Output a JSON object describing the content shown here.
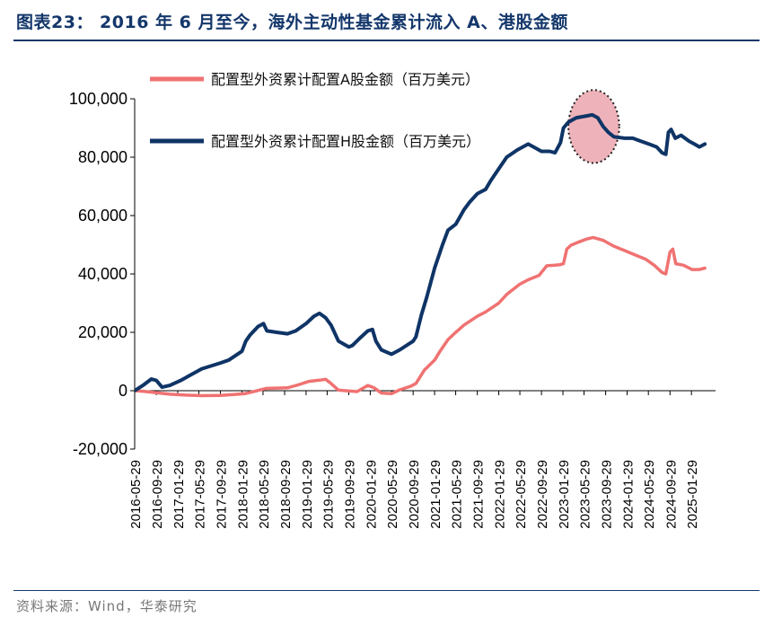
{
  "header": {
    "title": "图表23：  2016 年 6 月至今，海外主动性基金累计流入 A、港股金额"
  },
  "footer": {
    "source": "资料来源：Wind，华泰研究"
  },
  "colors": {
    "title": "#14376b",
    "series_a": "#f07272",
    "series_h": "#0f3466",
    "highlight_fill": "#e89aa3",
    "axis": "#000000"
  },
  "chart_data": {
    "type": "line",
    "x_tick_labels": [
      "2016-05-29",
      "2016-09-29",
      "2017-01-29",
      "2017-05-29",
      "2017-09-29",
      "2018-01-29",
      "2018-05-29",
      "2018-09-29",
      "2019-01-29",
      "2019-05-29",
      "2019-09-29",
      "2020-01-29",
      "2020-05-29",
      "2020-09-29",
      "2021-01-29",
      "2021-05-29",
      "2021-09-29",
      "2022-01-29",
      "2022-05-29",
      "2022-09-29",
      "2023-01-29",
      "2023-05-29",
      "2023-09-29",
      "2024-01-29",
      "2024-05-29",
      "2024-09-29",
      "2025-01-29"
    ],
    "x_range": [
      "2016-05-29",
      "2025-06-15"
    ],
    "y_ticks": [
      -20000,
      0,
      20000,
      40000,
      60000,
      80000,
      100000
    ],
    "y_tick_labels": [
      "-20,000",
      "0",
      "20,000",
      "40,000",
      "60,000",
      "80,000",
      "100,000"
    ],
    "ylim": [
      -20000,
      100000
    ],
    "legend_position": "top-left",
    "highlight": {
      "type": "ellipse",
      "x_range": [
        "2023-03-01",
        "2023-12-15"
      ],
      "y_range": [
        78000,
        103000
      ],
      "style": "dotted"
    },
    "series": [
      {
        "name": "配置型外资累计配置A股金额（百万美元）",
        "color": "#f07272",
        "points": [
          [
            "2016-05-29",
            0
          ],
          [
            "2016-07-15",
            -200
          ],
          [
            "2016-09-29",
            -700
          ],
          [
            "2016-12-15",
            -1200
          ],
          [
            "2017-03-15",
            -1500
          ],
          [
            "2017-06-15",
            -1700
          ],
          [
            "2017-09-29",
            -1600
          ],
          [
            "2017-12-15",
            -1300
          ],
          [
            "2018-02-15",
            -1000
          ],
          [
            "2018-04-15",
            -200
          ],
          [
            "2018-06-15",
            800
          ],
          [
            "2018-08-15",
            900
          ],
          [
            "2018-10-15",
            1000
          ],
          [
            "2018-12-15",
            2000
          ],
          [
            "2019-02-15",
            3200
          ],
          [
            "2019-04-15",
            3600
          ],
          [
            "2019-05-20",
            3900
          ],
          [
            "2019-06-15",
            2700
          ],
          [
            "2019-08-01",
            200
          ],
          [
            "2019-09-29",
            -100
          ],
          [
            "2019-11-15",
            -300
          ],
          [
            "2020-01-15",
            1800
          ],
          [
            "2020-02-20",
            1000
          ],
          [
            "2020-04-01",
            -800
          ],
          [
            "2020-05-29",
            -1000
          ],
          [
            "2020-07-15",
            300
          ],
          [
            "2020-09-15",
            1500
          ],
          [
            "2020-10-15",
            2500
          ],
          [
            "2020-12-01",
            7000
          ],
          [
            "2021-01-29",
            10500
          ],
          [
            "2021-03-01",
            13500
          ],
          [
            "2021-04-15",
            17500
          ],
          [
            "2021-05-29",
            20000
          ],
          [
            "2021-07-15",
            22500
          ],
          [
            "2021-09-29",
            25500
          ],
          [
            "2021-11-15",
            27000
          ],
          [
            "2022-01-29",
            30000
          ],
          [
            "2022-03-15",
            33000
          ],
          [
            "2022-05-29",
            36500
          ],
          [
            "2022-07-15",
            38000
          ],
          [
            "2022-09-15",
            39500
          ],
          [
            "2022-10-29",
            42800
          ],
          [
            "2022-12-15",
            43000
          ],
          [
            "2023-01-15",
            43200
          ],
          [
            "2023-02-01",
            43500
          ],
          [
            "2023-02-20",
            48500
          ],
          [
            "2023-03-15",
            49800
          ],
          [
            "2023-05-01",
            51000
          ],
          [
            "2023-06-15",
            52000
          ],
          [
            "2023-07-20",
            52500
          ],
          [
            "2023-09-15",
            51500
          ],
          [
            "2023-11-15",
            49500
          ],
          [
            "2024-01-15",
            48000
          ],
          [
            "2024-03-15",
            46500
          ],
          [
            "2024-05-15",
            45000
          ],
          [
            "2024-07-01",
            43000
          ],
          [
            "2024-08-15",
            40500
          ],
          [
            "2024-09-05",
            40000
          ],
          [
            "2024-09-29",
            47500
          ],
          [
            "2024-10-15",
            48500
          ],
          [
            "2024-11-01",
            43500
          ],
          [
            "2024-12-15",
            43000
          ],
          [
            "2025-02-01",
            41500
          ],
          [
            "2025-03-15",
            41500
          ],
          [
            "2025-04-15",
            42000
          ]
        ]
      },
      {
        "name": "配置型外资累计配置H股金额（百万美元）",
        "color": "#0f3466",
        "points": [
          [
            "2016-05-29",
            0
          ],
          [
            "2016-07-15",
            1800
          ],
          [
            "2016-09-01",
            4000
          ],
          [
            "2016-09-29",
            3500
          ],
          [
            "2016-11-01",
            1200
          ],
          [
            "2016-12-15",
            1800
          ],
          [
            "2017-02-15",
            3500
          ],
          [
            "2017-04-15",
            5500
          ],
          [
            "2017-06-15",
            7500
          ],
          [
            "2017-09-29",
            9500
          ],
          [
            "2017-11-15",
            10500
          ],
          [
            "2018-01-29",
            13500
          ],
          [
            "2018-02-20",
            17000
          ],
          [
            "2018-03-15",
            19000
          ],
          [
            "2018-05-01",
            22000
          ],
          [
            "2018-06-01",
            23000
          ],
          [
            "2018-06-20",
            20500
          ],
          [
            "2018-08-15",
            20000
          ],
          [
            "2018-10-15",
            19500
          ],
          [
            "2018-12-01",
            20500
          ],
          [
            "2019-01-29",
            23000
          ],
          [
            "2019-03-15",
            25500
          ],
          [
            "2019-04-15",
            26500
          ],
          [
            "2019-05-20",
            25000
          ],
          [
            "2019-06-20",
            22500
          ],
          [
            "2019-08-01",
            17000
          ],
          [
            "2019-09-29",
            15000
          ],
          [
            "2019-10-20",
            15500
          ],
          [
            "2019-12-01",
            18000
          ],
          [
            "2020-01-15",
            20500
          ],
          [
            "2020-02-10",
            21000
          ],
          [
            "2020-03-01",
            17000
          ],
          [
            "2020-04-01",
            14000
          ],
          [
            "2020-05-29",
            12500
          ],
          [
            "2020-07-15",
            14000
          ],
          [
            "2020-09-29",
            17000
          ],
          [
            "2020-10-15",
            18500
          ],
          [
            "2020-11-15",
            26000
          ],
          [
            "2020-12-15",
            32000
          ],
          [
            "2021-01-29",
            42000
          ],
          [
            "2021-03-15",
            50000
          ],
          [
            "2021-04-15",
            55000
          ],
          [
            "2021-05-29",
            57000
          ],
          [
            "2021-07-15",
            62000
          ],
          [
            "2021-08-15",
            64500
          ],
          [
            "2021-09-29",
            67500
          ],
          [
            "2021-11-15",
            69000
          ],
          [
            "2021-12-15",
            72000
          ],
          [
            "2022-01-29",
            76000
          ],
          [
            "2022-03-15",
            80000
          ],
          [
            "2022-05-15",
            82500
          ],
          [
            "2022-07-15",
            84500
          ],
          [
            "2022-08-15",
            83500
          ],
          [
            "2022-09-29",
            82000
          ],
          [
            "2022-11-15",
            82000
          ],
          [
            "2022-12-15",
            81500
          ],
          [
            "2023-01-15",
            85000
          ],
          [
            "2023-02-01",
            90000
          ],
          [
            "2023-03-01",
            92000
          ],
          [
            "2023-04-15",
            93500
          ],
          [
            "2023-06-01",
            94000
          ],
          [
            "2023-07-15",
            94500
          ],
          [
            "2023-08-15",
            93500
          ],
          [
            "2023-09-15",
            90500
          ],
          [
            "2023-10-15",
            88500
          ],
          [
            "2023-11-15",
            87000
          ],
          [
            "2024-01-15",
            86500
          ],
          [
            "2024-03-01",
            86500
          ],
          [
            "2024-04-15",
            85500
          ],
          [
            "2024-06-01",
            84500
          ],
          [
            "2024-07-15",
            83500
          ],
          [
            "2024-08-15",
            81500
          ],
          [
            "2024-09-05",
            81000
          ],
          [
            "2024-09-20",
            88500
          ],
          [
            "2024-10-05",
            89500
          ],
          [
            "2024-10-29",
            86500
          ],
          [
            "2024-12-01",
            87500
          ],
          [
            "2025-01-15",
            85500
          ],
          [
            "2025-02-15",
            84500
          ],
          [
            "2025-03-15",
            83500
          ],
          [
            "2025-04-15",
            84500
          ]
        ]
      }
    ]
  }
}
